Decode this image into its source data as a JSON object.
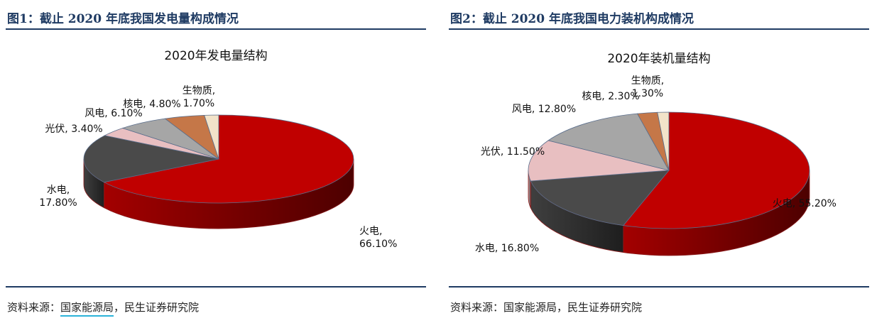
{
  "figures": [
    {
      "title": "图1：截止 2020 年底我国发电量构成情况",
      "source_prefix": "资料来源：",
      "source_org": "国家能源局",
      "source_suffix": "，民生证券研究院"
    },
    {
      "title": "图2：截止 2020 年底我国电力装机构成情况",
      "source_prefix": "资料来源：",
      "source_org": "国家能源局",
      "source_suffix": "，民生证券研究院"
    }
  ],
  "chart_data": [
    {
      "type": "pie",
      "title": "2020年发电量结构",
      "slices": [
        {
          "name": "火电",
          "value": 66.1,
          "label": "66.10%",
          "color": "#c00000"
        },
        {
          "name": "水电",
          "value": 17.8,
          "label": "17.80%",
          "color": "#4a4a4a"
        },
        {
          "name": "光伏",
          "value": 3.4,
          "label": "3.40%",
          "color": "#e8bfc1"
        },
        {
          "name": "风电",
          "value": 6.1,
          "label": "6.10%",
          "color": "#a6a6a6"
        },
        {
          "name": "核电",
          "value": 4.8,
          "label": "4.80%",
          "color": "#c57748"
        },
        {
          "name": "生物质",
          "value": 1.7,
          "label": "1.70%",
          "color": "#f2e3c9"
        }
      ]
    },
    {
      "type": "pie",
      "title": "2020年装机量结构",
      "slices": [
        {
          "name": "火电",
          "value": 55.2,
          "label": "55.20%",
          "color": "#c00000"
        },
        {
          "name": "水电",
          "value": 16.8,
          "label": "16.80%",
          "color": "#4a4a4a"
        },
        {
          "name": "光伏",
          "value": 11.5,
          "label": "11.50%",
          "color": "#e8bfc1"
        },
        {
          "name": "风电",
          "value": 12.8,
          "label": "12.80%",
          "color": "#a6a6a6"
        },
        {
          "name": "核电",
          "value": 2.3,
          "label": "2.30%",
          "color": "#c57748"
        },
        {
          "name": "生物质",
          "value": 1.3,
          "label": "1.30%",
          "color": "#f2e3c9"
        }
      ]
    }
  ]
}
